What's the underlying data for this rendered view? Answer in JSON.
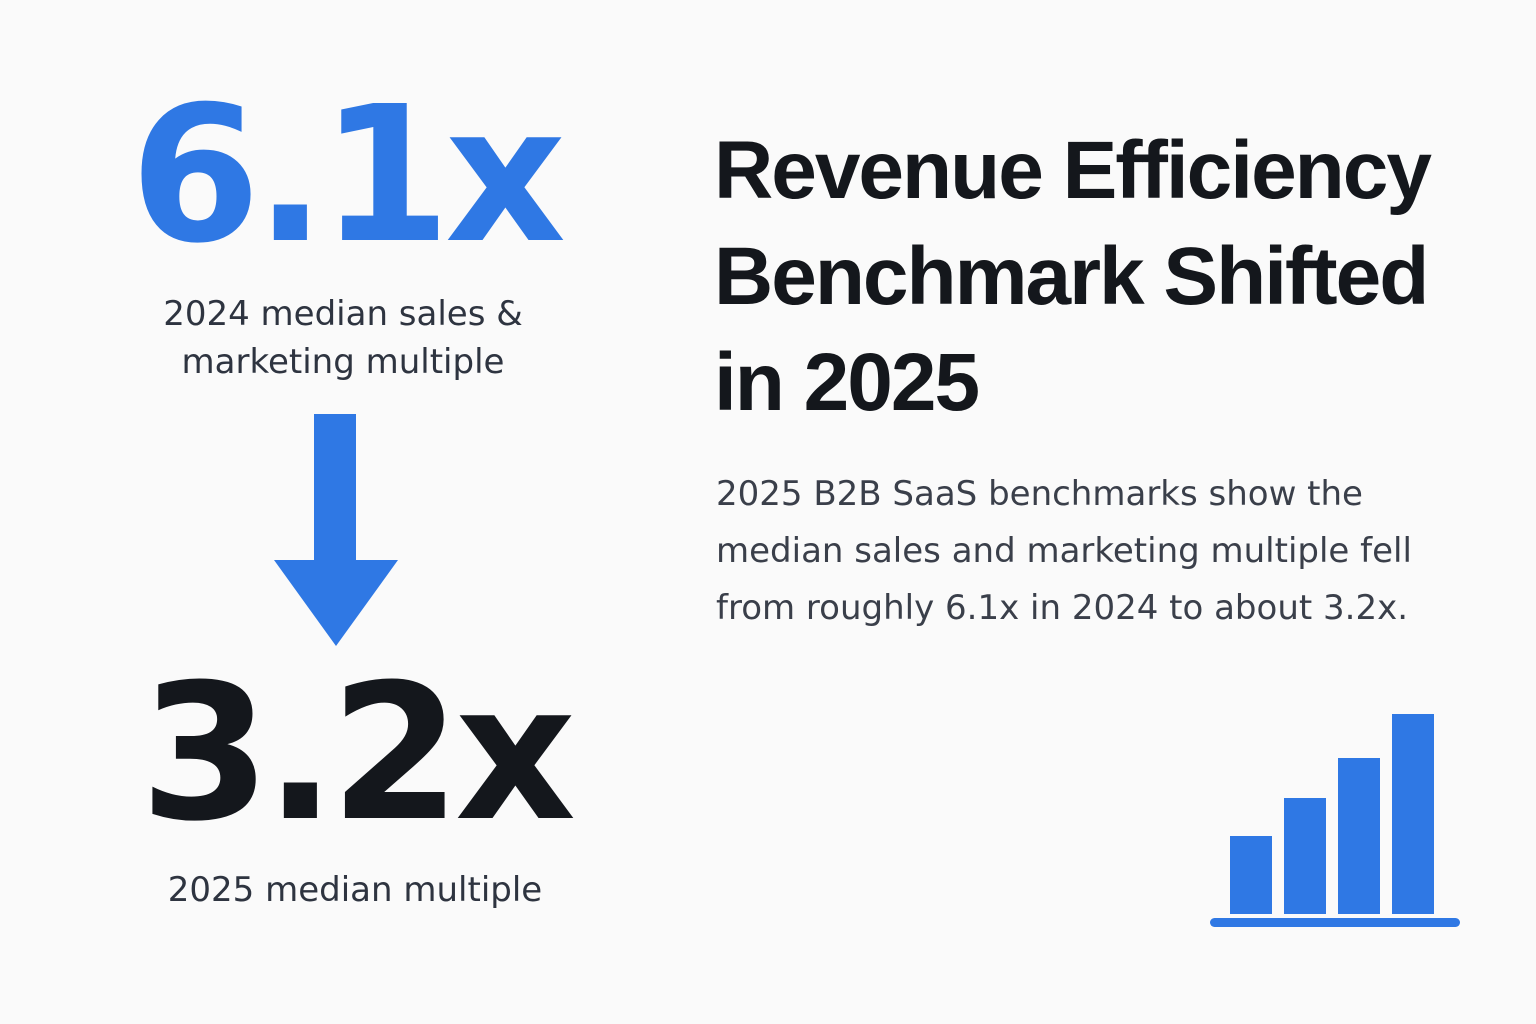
{
  "metrics": {
    "previous": {
      "value": "6.1x",
      "caption": "2024 median sales & marketing multiple"
    },
    "current": {
      "value": "3.2x",
      "caption": "2025 median multiple"
    }
  },
  "headline": "Revenue Efficiency Benchmark Shifted in 2025",
  "body": "2025 B2B SaaS benchmarks show the median sales and marketing multiple fell from roughly 6.1x in 2024 to about 3.2x.",
  "icons": {
    "arrow": "arrow-down-icon",
    "chart": "bar-chart-icon"
  },
  "colors": {
    "accent": "#2f78e4",
    "dark": "#14171c",
    "text": "#2e3440",
    "background": "#fafafa"
  }
}
